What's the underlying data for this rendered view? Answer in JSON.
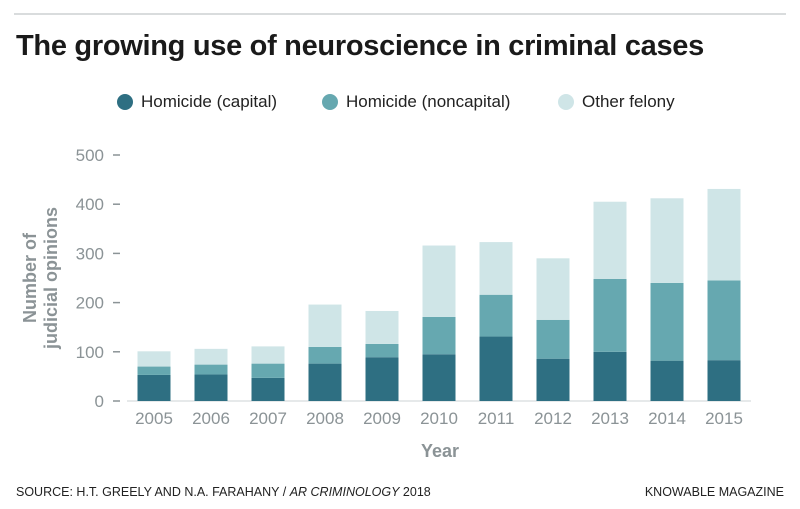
{
  "header": {
    "title": "The growing use of neuroscience in criminal cases"
  },
  "colors": {
    "capital": "#2e6f82",
    "noncapital": "#66a8b0",
    "other": "#cfe5e7",
    "axis_text": "#8b9396"
  },
  "chart_data": {
    "type": "bar",
    "stacked": true,
    "categories": [
      "2005",
      "2006",
      "2007",
      "2008",
      "2009",
      "2010",
      "2011",
      "2012",
      "2013",
      "2014",
      "2015"
    ],
    "series": [
      {
        "name": "Homicide (capital)",
        "values": [
          53,
          54,
          47,
          76,
          89,
          95,
          131,
          86,
          100,
          82,
          83
        ]
      },
      {
        "name": "Homicide (noncapital)",
        "values": [
          17,
          20,
          29,
          34,
          27,
          76,
          85,
          79,
          148,
          158,
          162
        ]
      },
      {
        "name": "Other felony",
        "values": [
          31,
          32,
          35,
          86,
          67,
          145,
          107,
          125,
          157,
          172,
          186
        ]
      }
    ],
    "xlabel": "Year",
    "ylabel": "Number of judicial opinions",
    "ylim": [
      0,
      500
    ],
    "yticks": [
      0,
      100,
      200,
      300,
      400,
      500
    ],
    "grid": false,
    "legend": "top"
  },
  "footer": {
    "source_prefix": "SOURCE: H.T. GREELY AND N.A. FARAHANY / ",
    "source_journal": "AR CRIMINOLOGY",
    "source_year": " 2018",
    "brand": "KNOWABLE MAGAZINE"
  }
}
